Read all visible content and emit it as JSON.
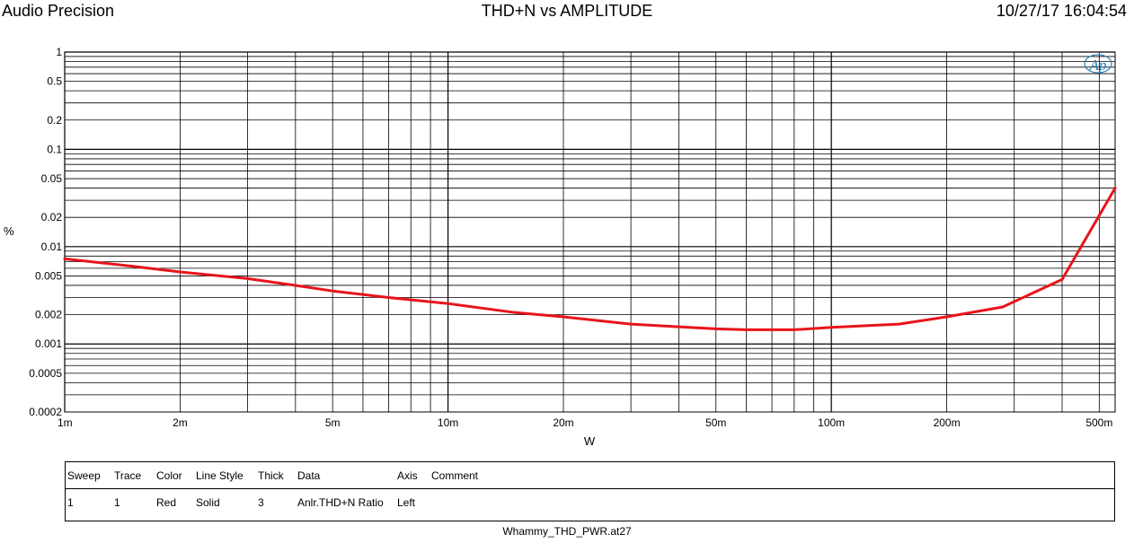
{
  "header": {
    "brand": "Audio Precision",
    "title": "THD+N vs AMPLITUDE",
    "timestamp": "10/27/17 16:04:54"
  },
  "chart_data": {
    "type": "line",
    "title": "THD+N vs AMPLITUDE",
    "xlabel": "W",
    "ylabel": "%",
    "x_scale": "log",
    "y_scale": "log",
    "xlim": [
      0.001,
      0.55
    ],
    "ylim": [
      0.0002,
      1
    ],
    "x_ticks": [
      {
        "v": 0.001,
        "label": "1m"
      },
      {
        "v": 0.002,
        "label": "2m"
      },
      {
        "v": 0.005,
        "label": "5m"
      },
      {
        "v": 0.01,
        "label": "10m"
      },
      {
        "v": 0.02,
        "label": "20m"
      },
      {
        "v": 0.05,
        "label": "50m"
      },
      {
        "v": 0.1,
        "label": "100m"
      },
      {
        "v": 0.2,
        "label": "200m"
      },
      {
        "v": 0.5,
        "label": "500m"
      }
    ],
    "y_ticks": [
      {
        "v": 1,
        "label": "1"
      },
      {
        "v": 0.5,
        "label": "0.5"
      },
      {
        "v": 0.2,
        "label": "0.2"
      },
      {
        "v": 0.1,
        "label": "0.1"
      },
      {
        "v": 0.05,
        "label": "0.05"
      },
      {
        "v": 0.02,
        "label": "0.02"
      },
      {
        "v": 0.01,
        "label": "0.01"
      },
      {
        "v": 0.005,
        "label": "0.005"
      },
      {
        "v": 0.002,
        "label": "0.002"
      },
      {
        "v": 0.001,
        "label": "0.001"
      },
      {
        "v": 0.0005,
        "label": "0.0005"
      },
      {
        "v": 0.0002,
        "label": "0.0002"
      }
    ],
    "grid": true,
    "logo": "Ap",
    "colors": {
      "trace": "#e8141c",
      "logo": "#2a7fb8"
    },
    "series": [
      {
        "x": [
          0.001,
          0.0015,
          0.002,
          0.003,
          0.004,
          0.005,
          0.007,
          0.01,
          0.015,
          0.02,
          0.03,
          0.04,
          0.05,
          0.06,
          0.07,
          0.08,
          0.1,
          0.15,
          0.2,
          0.28,
          0.4,
          0.55
        ],
        "values": [
          0.0075,
          0.0063,
          0.0055,
          0.0047,
          0.004,
          0.0035,
          0.003,
          0.0026,
          0.0021,
          0.0019,
          0.0016,
          0.0015,
          0.00143,
          0.0014,
          0.0014,
          0.0014,
          0.00148,
          0.0016,
          0.0019,
          0.0024,
          0.0046,
          0.04
        ]
      }
    ]
  },
  "legend": {
    "headers": [
      "Sweep",
      "Trace",
      "Color",
      "Line Style",
      "Thick",
      "Data",
      "Axis",
      "Comment"
    ],
    "rows": [
      [
        "1",
        "1",
        "Red",
        "Solid",
        "3",
        "Anlr.THD+N Ratio",
        "Left",
        ""
      ]
    ]
  },
  "footer": {
    "filename": "Whammy_THD_PWR.at27"
  }
}
